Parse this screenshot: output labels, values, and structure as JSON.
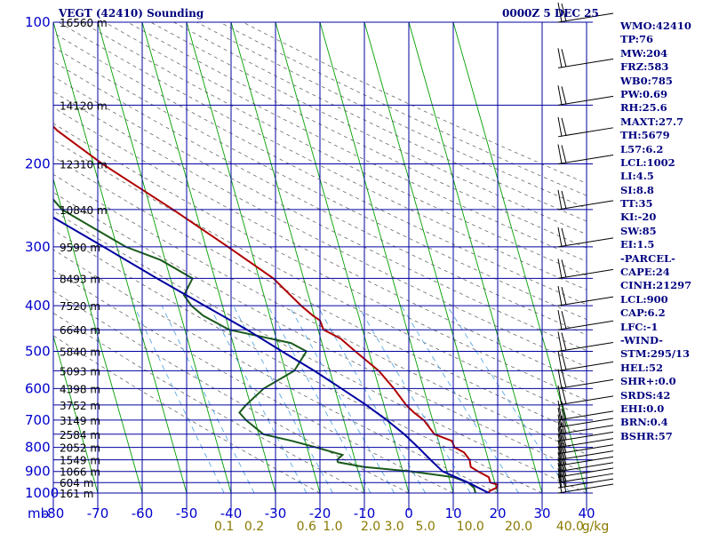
{
  "header": {
    "title": "VEGT (42410) Sounding",
    "timestamp": "0000Z  5 DEC 25"
  },
  "indices": [
    "WMO:42410",
    "TP:76",
    "MW:204",
    "FRZ:583",
    "WB0:785",
    "PW:0.69",
    "RH:25.6",
    "MAXT:27.7",
    "TH:5679",
    "L57:6.2",
    "LCL:1002",
    "LI:4.5",
    "SI:8.8",
    "TT:35",
    "KI:-20",
    "SW:85",
    "EI:1.5",
    "-PARCEL-",
    "CAPE:24",
    "CINH:21297",
    "LCL:900",
    "CAP:6.2",
    "LFC:-1",
    "-WIND-",
    "STM:295/13",
    "HEL:52",
    "SHR+:0.0",
    "SRDS:42",
    "EHI:0.0",
    "BRN:0.4",
    "BSHR:57"
  ],
  "chart_data": {
    "type": "line",
    "title": "VEGT (42410) Sounding",
    "xlabel": "",
    "ylabel": "mb",
    "x_unit_label": "mb",
    "pressure_ticks": [
      "100",
      "200",
      "300",
      "400",
      "500",
      "600",
      "700",
      "800",
      "900",
      "1000"
    ],
    "temperature_ticks": [
      "-80",
      "-70",
      "-60",
      "-50",
      "-40",
      "-30",
      "-20",
      "-10",
      "0",
      "10",
      "20",
      "30",
      "40"
    ],
    "mixing_ratio_ticks": [
      "0.1",
      "0.2",
      "0.6",
      "1.0",
      "2.0",
      "3.0",
      "5.0",
      "10.0",
      "20.0",
      "40.0",
      "g/kg"
    ],
    "height_labels": [
      {
        "p": 100,
        "label": "16560 m"
      },
      {
        "p": 150,
        "label": "14120 m"
      },
      {
        "p": 200,
        "label": "12310 m"
      },
      {
        "p": 250,
        "label": "10840 m"
      },
      {
        "p": 300,
        "label": "9590 m"
      },
      {
        "p": 350,
        "label": "8493 m"
      },
      {
        "p": 400,
        "label": "7520 m"
      },
      {
        "p": 450,
        "label": "6640 m"
      },
      {
        "p": 500,
        "label": "5840 m"
      },
      {
        "p": 550,
        "label": "5093 m"
      },
      {
        "p": 600,
        "label": "4398 m"
      },
      {
        "p": 650,
        "label": "3752 m"
      },
      {
        "p": 700,
        "label": "3149 m"
      },
      {
        "p": 750,
        "label": "2584 m"
      },
      {
        "p": 800,
        "label": "2052 m"
      },
      {
        "p": 850,
        "label": "1549 m"
      },
      {
        "p": 900,
        "label": "1066 m"
      },
      {
        "p": 950,
        "label": "604 m"
      },
      {
        "p": 1000,
        "label": "161 m"
      }
    ],
    "grid": true,
    "skew_offset_per_decade_of_pressure_degC": 30,
    "series": [
      {
        "color": "#b00000",
        "points": [
          [
            1000,
            18
          ],
          [
            990,
            18.3
          ],
          [
            975,
            20
          ],
          [
            960,
            20.5
          ],
          [
            950,
            19
          ],
          [
            925,
            19
          ],
          [
            900,
            17
          ],
          [
            880,
            15.6
          ],
          [
            850,
            15.8
          ],
          [
            820,
            15
          ],
          [
            800,
            13.2
          ],
          [
            775,
            13
          ],
          [
            750,
            9.5
          ],
          [
            700,
            8
          ],
          [
            675,
            6.3
          ],
          [
            650,
            5
          ],
          [
            600,
            3.3
          ],
          [
            550,
            1
          ],
          [
            500,
            -3
          ],
          [
            470,
            -5.5
          ],
          [
            450,
            -8.8
          ],
          [
            430,
            -9
          ],
          [
            420,
            -10.3
          ],
          [
            400,
            -12.3
          ],
          [
            350,
            -16.8
          ],
          [
            300,
            -25
          ],
          [
            250,
            -35
          ],
          [
            200,
            -48
          ],
          [
            170,
            -56
          ],
          [
            150,
            -60
          ],
          [
            125,
            -66
          ],
          [
            100,
            -76
          ]
        ]
      },
      {
        "color": "#1a5a1a",
        "points": [
          [
            1000,
            15
          ],
          [
            975,
            15
          ],
          [
            950,
            14
          ],
          [
            925,
            11
          ],
          [
            900,
            2
          ],
          [
            880,
            -8.5
          ],
          [
            860,
            -14
          ],
          [
            850,
            -14
          ],
          [
            830,
            -12.5
          ],
          [
            800,
            -18
          ],
          [
            775,
            -23
          ],
          [
            750,
            -29
          ],
          [
            700,
            -32
          ],
          [
            675,
            -33
          ],
          [
            650,
            -31
          ],
          [
            600,
            -26
          ],
          [
            550,
            -18
          ],
          [
            500,
            -14
          ],
          [
            480,
            -17
          ],
          [
            450,
            -30
          ],
          [
            420,
            -35
          ],
          [
            400,
            -37
          ],
          [
            380,
            -38
          ],
          [
            350,
            -35
          ],
          [
            320,
            -41
          ],
          [
            300,
            -48
          ],
          [
            250,
            -60
          ],
          [
            200,
            -66
          ],
          [
            180,
            -69
          ]
        ]
      },
      {
        "color": "#0000a0",
        "points": [
          [
            1000,
            18
          ],
          [
            950,
            14
          ],
          [
            900,
            9
          ],
          [
            850,
            7
          ],
          [
            800,
            5
          ],
          [
            750,
            2.7
          ],
          [
            700,
            -0.3
          ],
          [
            650,
            -4
          ],
          [
            600,
            -8.5
          ],
          [
            550,
            -13.5
          ],
          [
            500,
            -19.5
          ],
          [
            450,
            -26
          ],
          [
            400,
            -34
          ],
          [
            350,
            -43
          ],
          [
            300,
            -53
          ],
          [
            250,
            -65
          ],
          [
            200,
            -80
          ],
          [
            160,
            -93
          ]
        ]
      }
    ],
    "wind_barbs_pressure_levels": [
      1000,
      975,
      950,
      925,
      900,
      875,
      850,
      825,
      800,
      775,
      750,
      725,
      700,
      650,
      600,
      550,
      500,
      450,
      400,
      350,
      300,
      250,
      200,
      175,
      150,
      125,
      100
    ]
  }
}
